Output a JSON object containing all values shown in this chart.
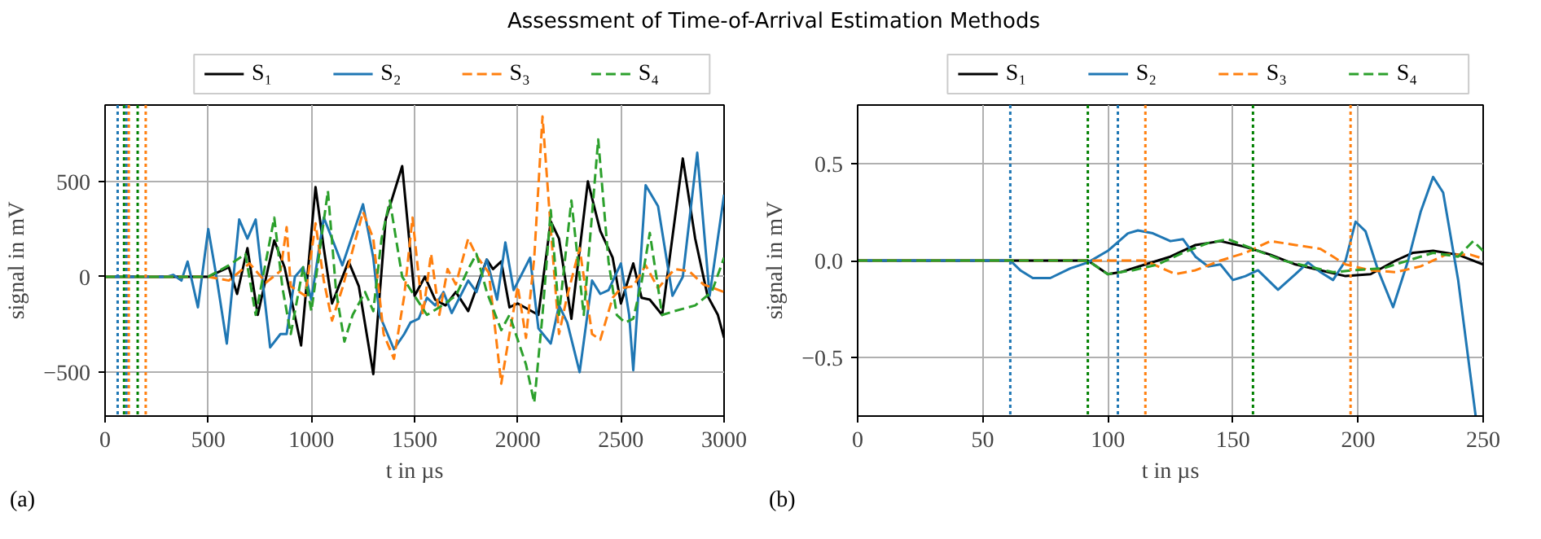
{
  "chart_data": [
    {
      "type": "line",
      "title": "Assessment of Time-of-Arrival Estimation Methods",
      "xlabel": "t in µs",
      "ylabel": "signal in mV",
      "annotations": [
        "(a)"
      ],
      "xlim": [
        0,
        3000
      ],
      "ylim": [
        -730,
        900
      ],
      "xticks": [
        0,
        500,
        1000,
        1500,
        2000,
        2500,
        3000
      ],
      "yticks": [
        {
          "value": -500,
          "label": "−500"
        },
        0,
        500
      ],
      "grid": true,
      "legend": "top",
      "ref_lines": [
        {
          "axis": "x",
          "value": 61,
          "color": "#1f77b4",
          "line_style": "dotted"
        },
        {
          "axis": "x",
          "value": 104,
          "color": "#1f77b4",
          "line_style": "dotted"
        },
        {
          "axis": "x",
          "value": 92,
          "color": "#008000",
          "line_style": "dotted"
        },
        {
          "axis": "x",
          "value": 158,
          "color": "#008000",
          "line_style": "dotted"
        },
        {
          "axis": "x",
          "value": 115,
          "color": "#ff7f0e",
          "line_style": "dotted"
        },
        {
          "axis": "x",
          "value": 197,
          "color": "#ff7f0e",
          "line_style": "dotted"
        }
      ],
      "series": [
        {
          "name": "S₁",
          "color": "#000000",
          "line_style": "solid",
          "x": [
            0,
            500,
            560,
            600,
            640,
            690,
            740,
            820,
            870,
            950,
            1020,
            1060,
            1100,
            1180,
            1230,
            1300,
            1360,
            1440,
            1500,
            1550,
            1600,
            1650,
            1700,
            1760,
            1850,
            1880,
            1920,
            1960,
            2000,
            2100,
            2160,
            2200,
            2260,
            2340,
            2400,
            2460,
            2500,
            2560,
            2600,
            2640,
            2700,
            2800,
            2860,
            2920,
            2970,
            3000
          ],
          "values": [
            0,
            0,
            30,
            50,
            -90,
            150,
            -200,
            190,
            50,
            -360,
            470,
            150,
            -140,
            80,
            -50,
            -510,
            300,
            580,
            -100,
            0,
            -120,
            -150,
            -80,
            -180,
            90,
            40,
            80,
            -160,
            -140,
            -200,
            290,
            200,
            -220,
            500,
            240,
            100,
            -140,
            70,
            -110,
            -120,
            -200,
            620,
            200,
            -100,
            -200,
            -320
          ]
        },
        {
          "name": "S₂",
          "color": "#1f77b4",
          "line_style": "solid",
          "x": [
            0,
            300,
            330,
            370,
            400,
            450,
            500,
            540,
            590,
            650,
            690,
            730,
            800,
            850,
            880,
            920,
            960,
            1000,
            1060,
            1100,
            1150,
            1250,
            1300,
            1330,
            1400,
            1450,
            1480,
            1520,
            1560,
            1600,
            1640,
            1680,
            1760,
            1800,
            1850,
            1900,
            1940,
            1980,
            2060,
            2100,
            2160,
            2200,
            2240,
            2300,
            2360,
            2400,
            2440,
            2500,
            2540,
            2560,
            2620,
            2680,
            2750,
            2800,
            2870,
            2930,
            3000
          ],
          "values": [
            0,
            0,
            10,
            -20,
            80,
            -160,
            250,
            0,
            -350,
            300,
            200,
            300,
            -370,
            -300,
            -300,
            0,
            50,
            -120,
            310,
            200,
            60,
            380,
            100,
            -200,
            -380,
            -300,
            -240,
            -220,
            -110,
            -150,
            -80,
            -190,
            -20,
            -80,
            90,
            -120,
            180,
            -70,
            100,
            -270,
            -350,
            -150,
            -240,
            -500,
            -20,
            -90,
            -70,
            70,
            -200,
            -490,
            480,
            370,
            -100,
            0,
            650,
            -100,
            430
          ]
        },
        {
          "name": "S₃",
          "color": "#ff7f0e",
          "line_style": "dashed",
          "x": [
            0,
            500,
            600,
            700,
            780,
            850,
            880,
            900,
            970,
            1020,
            1060,
            1100,
            1150,
            1250,
            1300,
            1350,
            1400,
            1450,
            1490,
            1540,
            1580,
            1620,
            1660,
            1700,
            1760,
            1800,
            1860,
            1920,
            1960,
            2000,
            2040,
            2080,
            2120,
            2160,
            2200,
            2240,
            2300,
            2360,
            2400,
            2460,
            2500,
            2560,
            2620,
            2680,
            2760,
            2830,
            2900,
            3000
          ],
          "values": [
            0,
            0,
            -20,
            70,
            -30,
            30,
            260,
            -50,
            -100,
            280,
            -20,
            -230,
            -60,
            340,
            200,
            -300,
            -430,
            -100,
            310,
            -200,
            120,
            -200,
            40,
            -40,
            200,
            110,
            20,
            -560,
            -300,
            -50,
            -320,
            100,
            840,
            250,
            -300,
            -100,
            150,
            -300,
            -330,
            -110,
            -60,
            -50,
            60,
            -60,
            40,
            30,
            -40,
            -80
          ]
        },
        {
          "name": "S₄",
          "color": "#2ca02c",
          "line_style": "dashed",
          "x": [
            0,
            500,
            600,
            680,
            730,
            820,
            860,
            900,
            960,
            1000,
            1080,
            1120,
            1160,
            1200,
            1260,
            1300,
            1340,
            1380,
            1440,
            1500,
            1560,
            1620,
            1700,
            1760,
            1800,
            1850,
            1920,
            1960,
            2040,
            2080,
            2120,
            2160,
            2200,
            2260,
            2320,
            2390,
            2440,
            2480,
            2520,
            2560,
            2600,
            2640,
            2700,
            2760,
            2860,
            2940,
            3000
          ],
          "values": [
            0,
            0,
            60,
            120,
            -200,
            310,
            -60,
            -300,
            50,
            -180,
            450,
            -80,
            -340,
            -200,
            -80,
            -180,
            200,
            400,
            0,
            -100,
            -200,
            -160,
            -100,
            40,
            120,
            -80,
            -280,
            -200,
            -460,
            -660,
            -200,
            350,
            -200,
            400,
            -200,
            720,
            80,
            -200,
            -240,
            -220,
            -30,
            230,
            -200,
            -180,
            -150,
            -80,
            100
          ]
        }
      ]
    },
    {
      "type": "line",
      "xlabel": "t in µs",
      "ylabel": "signal in mV",
      "annotations": [
        "(b)"
      ],
      "xlim": [
        0,
        250
      ],
      "ylim": [
        -0.8,
        0.8
      ],
      "xticks": [
        0,
        50,
        100,
        150,
        200,
        250
      ],
      "yticks": [
        {
          "value": -0.5,
          "label": "−0.5"
        },
        {
          "value": 0,
          "label": "0.0"
        },
        0.5
      ],
      "grid": true,
      "legend": "top",
      "ref_lines": [
        {
          "axis": "x",
          "value": 61,
          "color": "#1f77b4",
          "line_style": "dotted"
        },
        {
          "axis": "x",
          "value": 104,
          "color": "#1f77b4",
          "line_style": "dotted"
        },
        {
          "axis": "x",
          "value": 92,
          "color": "#008000",
          "line_style": "dotted"
        },
        {
          "axis": "x",
          "value": 158,
          "color": "#008000",
          "line_style": "dotted"
        },
        {
          "axis": "x",
          "value": 115,
          "color": "#ff7f0e",
          "line_style": "dotted"
        },
        {
          "axis": "x",
          "value": 197,
          "color": "#ff7f0e",
          "line_style": "dotted"
        }
      ],
      "series": [
        {
          "name": "S₁",
          "color": "#000000",
          "line_style": "solid",
          "x": [
            0,
            92,
            100,
            105,
            115,
            125,
            135,
            145,
            155,
            165,
            175,
            185,
            195,
            205,
            215,
            222,
            230,
            240,
            250
          ],
          "values": [
            0,
            0,
            -0.07,
            -0.06,
            -0.02,
            0.02,
            0.08,
            0.1,
            0.07,
            0.03,
            -0.02,
            -0.05,
            -0.08,
            -0.07,
            0,
            0.04,
            0.05,
            0.03,
            -0.02
          ]
        },
        {
          "name": "S₂",
          "color": "#1f77b4",
          "line_style": "solid",
          "x": [
            0,
            61,
            65,
            70,
            77,
            85,
            92,
            100,
            108,
            112,
            118,
            125,
            130,
            135,
            140,
            145,
            150,
            155,
            160,
            168,
            175,
            180,
            185,
            190,
            195,
            199,
            203,
            208,
            214,
            220,
            225,
            230,
            234,
            240,
            245,
            247
          ],
          "values": [
            0,
            0,
            -0.05,
            -0.09,
            -0.09,
            -0.04,
            -0.01,
            0.05,
            0.14,
            0.155,
            0.14,
            0.1,
            0.11,
            0.02,
            -0.03,
            -0.02,
            -0.1,
            -0.08,
            -0.05,
            -0.15,
            -0.07,
            -0.01,
            -0.06,
            -0.1,
            0,
            0.2,
            0.15,
            -0.05,
            -0.24,
            0,
            0.25,
            0.43,
            0.35,
            -0.1,
            -0.6,
            -0.8
          ]
        },
        {
          "name": "S₃",
          "color": "#ff7f0e",
          "line_style": "dashed",
          "x": [
            0,
            115,
            120,
            127,
            135,
            145,
            155,
            165,
            175,
            185,
            195,
            205,
            215,
            225,
            235,
            245,
            250
          ],
          "values": [
            0,
            0,
            -0.03,
            -0.07,
            -0.05,
            0,
            0.04,
            0.1,
            0.08,
            0.06,
            -0.02,
            -0.05,
            -0.06,
            -0.03,
            0.03,
            0.03,
            0.01
          ]
        },
        {
          "name": "S₄",
          "color": "#2ca02c",
          "line_style": "dashed",
          "x": [
            0,
            92,
            100,
            110,
            120,
            130,
            140,
            148,
            158,
            170,
            180,
            190,
            198,
            210,
            220,
            230,
            240,
            246,
            250
          ],
          "values": [
            0,
            0,
            -0.07,
            -0.05,
            -0.02,
            0.04,
            0.09,
            0.11,
            0.06,
            0,
            -0.03,
            -0.06,
            -0.05,
            -0.04,
            0,
            0.04,
            0.02,
            0.1,
            0.05
          ]
        }
      ]
    }
  ]
}
